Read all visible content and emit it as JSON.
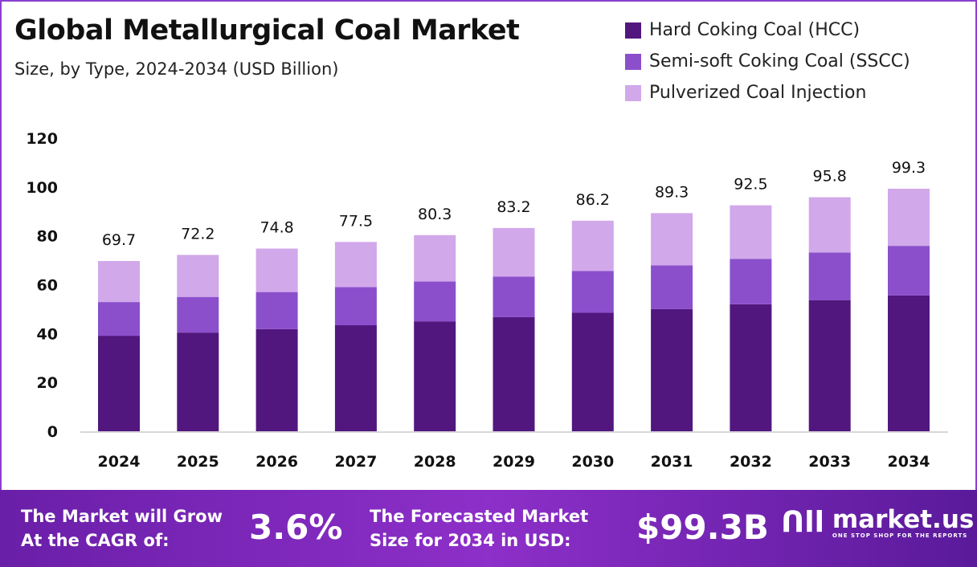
{
  "chart_data": {
    "type": "bar",
    "stacked": true,
    "title": "Global Metallurgical Coal Market",
    "subtitle": "Size, by Type, 2024-2034 (USD Billion)",
    "categories": [
      "2024",
      "2025",
      "2026",
      "2027",
      "2028",
      "2029",
      "2030",
      "2031",
      "2032",
      "2033",
      "2034"
    ],
    "series": [
      {
        "name": "Hard Coking Coal (HCC)",
        "color": "#52177f",
        "values": [
          39.1,
          40.4,
          41.8,
          43.4,
          45.0,
          46.7,
          48.5,
          50.0,
          52.0,
          53.7,
          55.6
        ]
      },
      {
        "name": "Semi-soft Coking Coal (SSCC)",
        "color": "#8b4fcc",
        "values": [
          13.8,
          14.6,
          15.2,
          15.6,
          16.3,
          16.6,
          17.1,
          17.9,
          18.6,
          19.5,
          20.3
        ]
      },
      {
        "name": "Pulverized Coal Injection",
        "color": "#d1a8ea",
        "values": [
          16.8,
          17.2,
          17.8,
          18.5,
          19.0,
          19.9,
          20.6,
          21.4,
          21.9,
          22.6,
          23.4
        ]
      }
    ],
    "totals": [
      "69.7",
      "72.2",
      "74.8",
      "77.5",
      "80.3",
      "83.2",
      "86.2",
      "89.3",
      "92.5",
      "95.8",
      "99.3"
    ],
    "ylim": [
      0,
      120
    ],
    "yticks": [
      "0",
      "20",
      "40",
      "60",
      "80",
      "100",
      "120"
    ],
    "xlabel": "",
    "ylabel": "",
    "grid": false,
    "legend": "top-right"
  },
  "footer": {
    "cagr_label": [
      "The Market will Grow",
      "At the CAGR of:"
    ],
    "cagr_value": "3.6%",
    "forecast_label": [
      "The Forecasted Market",
      "Size for 2034 in USD:"
    ],
    "forecast_value": "$99.3B",
    "logo_name": "market.us",
    "logo_tagline": "ONE STOP SHOP FOR THE REPORTS"
  }
}
